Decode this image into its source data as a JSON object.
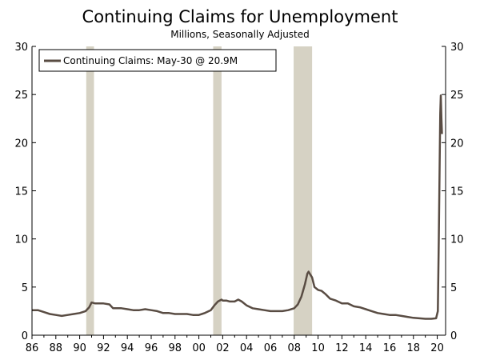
{
  "chart_data": {
    "type": "line",
    "title": "Continuing Claims for Unemployment",
    "subtitle": "Millions, Seasonally Adjusted",
    "xlabel": "",
    "ylabel": "",
    "xlim": [
      1986,
      2020.7
    ],
    "ylim": [
      0,
      30
    ],
    "y_ticks": [
      0,
      5,
      10,
      15,
      20,
      25,
      30
    ],
    "x_ticks": [
      {
        "year": 1986,
        "label": "86"
      },
      {
        "year": 1988,
        "label": "88"
      },
      {
        "year": 1990,
        "label": "90"
      },
      {
        "year": 1992,
        "label": "92"
      },
      {
        "year": 1994,
        "label": "94"
      },
      {
        "year": 1996,
        "label": "96"
      },
      {
        "year": 1998,
        "label": "98"
      },
      {
        "year": 2000,
        "label": "00"
      },
      {
        "year": 2002,
        "label": "02"
      },
      {
        "year": 2004,
        "label": "04"
      },
      {
        "year": 2006,
        "label": "06"
      },
      {
        "year": 2008,
        "label": "08"
      },
      {
        "year": 2010,
        "label": "10"
      },
      {
        "year": 2012,
        "label": "12"
      },
      {
        "year": 2014,
        "label": "14"
      },
      {
        "year": 2016,
        "label": "16"
      },
      {
        "year": 2018,
        "label": "18"
      },
      {
        "year": 2020,
        "label": "20"
      }
    ],
    "recessions": [
      {
        "start": 1990.55,
        "end": 1991.2
      },
      {
        "start": 2001.2,
        "end": 2001.9
      },
      {
        "start": 2007.95,
        "end": 2009.5
      }
    ],
    "legend": {
      "label": "Continuing Claims: May-30 @ 20.9M",
      "position": "top-left"
    },
    "series": [
      {
        "name": "Continuing Claims: May-30 @ 20.9M",
        "color": "#594c43",
        "x": [
          1986.0,
          1986.5,
          1987.0,
          1987.5,
          1988.0,
          1988.5,
          1989.0,
          1989.5,
          1990.0,
          1990.5,
          1990.8,
          1991.0,
          1991.3,
          1991.6,
          1992.0,
          1992.5,
          1992.8,
          1993.0,
          1993.5,
          1994.0,
          1994.5,
          1995.0,
          1995.5,
          1996.0,
          1996.5,
          1997.0,
          1997.5,
          1998.0,
          1998.5,
          1999.0,
          1999.5,
          2000.0,
          2000.5,
          2001.0,
          2001.3,
          2001.6,
          2001.9,
          2002.0,
          2002.3,
          2002.6,
          2003.0,
          2003.3,
          2003.6,
          2004.0,
          2004.5,
          2005.0,
          2005.5,
          2006.0,
          2006.5,
          2007.0,
          2007.5,
          2008.0,
          2008.3,
          2008.6,
          2008.9,
          2009.1,
          2009.2,
          2009.35,
          2009.5,
          2009.7,
          2010.0,
          2010.3,
          2010.6,
          2011.0,
          2011.5,
          2012.0,
          2012.5,
          2013.0,
          2013.5,
          2014.0,
          2014.5,
          2015.0,
          2015.5,
          2016.0,
          2016.5,
          2017.0,
          2017.5,
          2018.0,
          2018.5,
          2019.0,
          2019.5,
          2019.9,
          2020.05,
          2020.13,
          2020.2,
          2020.25,
          2020.3,
          2020.35,
          2020.4
        ],
        "values": [
          2.6,
          2.6,
          2.4,
          2.2,
          2.1,
          2.0,
          2.1,
          2.2,
          2.3,
          2.5,
          2.9,
          3.4,
          3.3,
          3.3,
          3.3,
          3.2,
          2.8,
          2.8,
          2.8,
          2.7,
          2.6,
          2.6,
          2.7,
          2.6,
          2.5,
          2.3,
          2.3,
          2.2,
          2.2,
          2.2,
          2.1,
          2.1,
          2.3,
          2.6,
          3.1,
          3.5,
          3.7,
          3.6,
          3.6,
          3.5,
          3.5,
          3.7,
          3.5,
          3.1,
          2.8,
          2.7,
          2.6,
          2.5,
          2.5,
          2.5,
          2.6,
          2.8,
          3.2,
          4.0,
          5.3,
          6.4,
          6.6,
          6.3,
          6.0,
          5.0,
          4.7,
          4.6,
          4.3,
          3.8,
          3.6,
          3.3,
          3.3,
          3.0,
          2.9,
          2.7,
          2.5,
          2.3,
          2.2,
          2.1,
          2.1,
          2.0,
          1.9,
          1.8,
          1.75,
          1.7,
          1.7,
          1.75,
          2.5,
          10.0,
          18.0,
          23.0,
          24.9,
          22.5,
          20.9
        ]
      }
    ]
  },
  "colors": {
    "line": "#594c43",
    "recession": "#d6d2c4",
    "axis": "#000000"
  }
}
